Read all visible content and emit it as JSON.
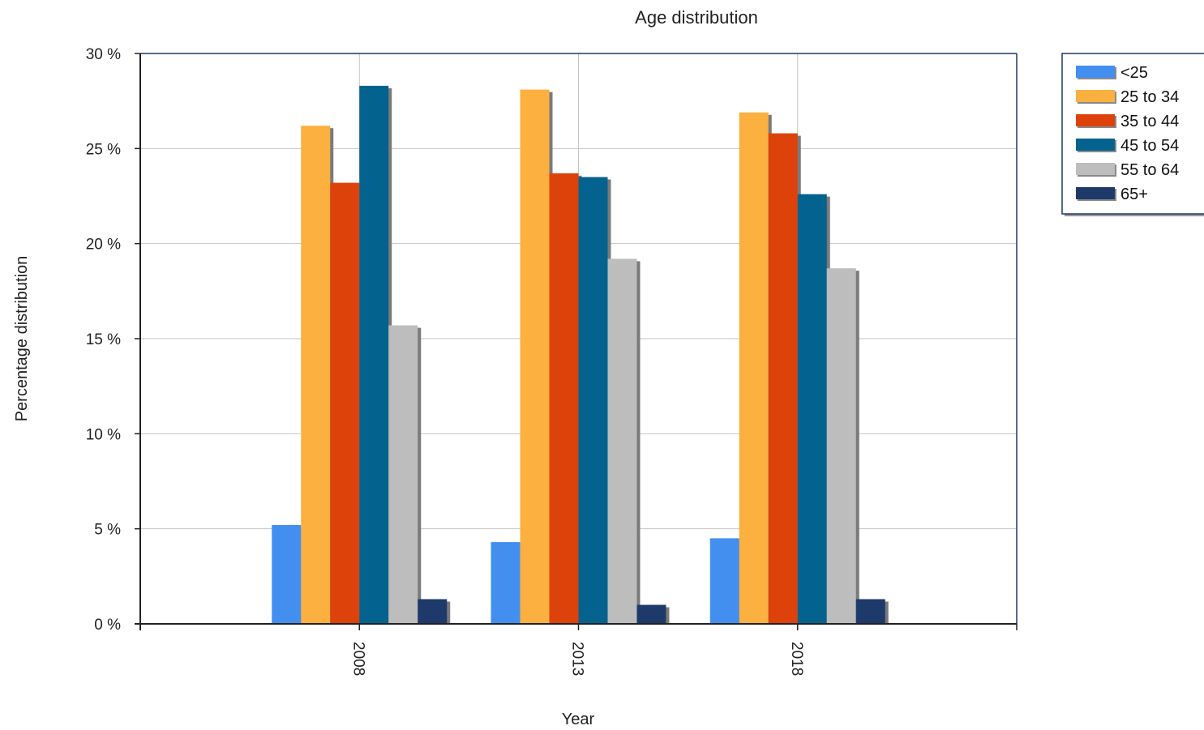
{
  "chart_data": {
    "type": "bar",
    "title": "Age distribution",
    "xlabel": "Year",
    "ylabel": "Percentage distribution",
    "categories": [
      "2008",
      "2013",
      "2018"
    ],
    "ylim": [
      0,
      30
    ],
    "yticks": [
      0,
      5,
      10,
      15,
      20,
      25,
      30
    ],
    "ytick_labels": [
      "0 %",
      "5 %",
      "10 %",
      "15 %",
      "20 %",
      "25 %",
      "30 %"
    ],
    "grid": true,
    "legend_position": "top-right",
    "series": [
      {
        "name": "<25",
        "color": "#428ff0",
        "values": [
          5.2,
          4.3,
          4.5
        ]
      },
      {
        "name": "25 to 34",
        "color": "#fbb03f",
        "values": [
          26.2,
          28.1,
          26.9
        ]
      },
      {
        "name": "35 to 44",
        "color": "#dd420b",
        "values": [
          23.2,
          23.7,
          25.8
        ]
      },
      {
        "name": "45 to 54",
        "color": "#04628f",
        "values": [
          28.3,
          23.5,
          22.6
        ]
      },
      {
        "name": "55 to 64",
        "color": "#bdbdbd",
        "values": [
          15.7,
          19.2,
          18.7
        ]
      },
      {
        "name": "65+",
        "color": "#1d3a6a",
        "values": [
          1.3,
          1.0,
          1.3
        ]
      }
    ]
  }
}
